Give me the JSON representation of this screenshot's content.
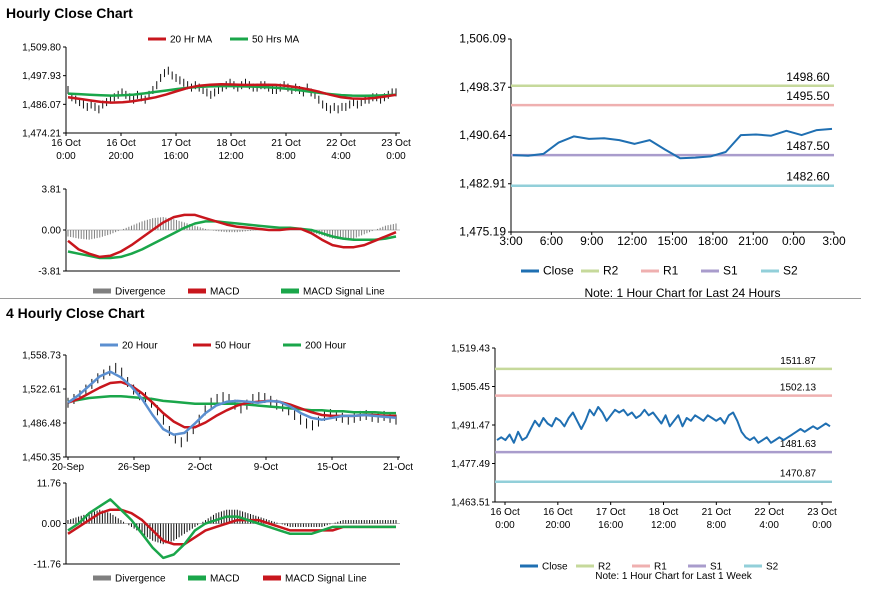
{
  "sections": [
    {
      "title": "Hourly Close Chart"
    },
    {
      "title": "4 Hourly Close Chart"
    }
  ],
  "colors": {
    "close": "#1f6fb2",
    "ma_red": "#c8161d",
    "ma_green": "#1aa64a",
    "ma_blue": "#5b8fd0",
    "r2": "#c6d99b",
    "r1": "#efb0b0",
    "s1": "#a99ccc",
    "s2": "#92cfd9",
    "grey": "#7f7f7f",
    "black": "#111111"
  },
  "chart_data": [
    {
      "id": "hourly_price",
      "type": "line",
      "title": "Hourly Close Chart",
      "y_ticks": [
        "1,509.80",
        "1,497.93",
        "1,486.07",
        "1,474.21"
      ],
      "ylim": [
        1474.21,
        1509.8
      ],
      "x_ticks": [
        [
          "16 Oct",
          "0:00"
        ],
        [
          "16 Oct",
          "20:00"
        ],
        [
          "17 Oct",
          "16:00"
        ],
        [
          "18 Oct",
          "12:00"
        ],
        [
          "21 Oct",
          "8:00"
        ],
        [
          "22 Oct",
          "4:00"
        ],
        [
          "23 Oct",
          "0:00"
        ]
      ],
      "legend": [
        "20 Hr MA",
        "50 Hrs MA"
      ],
      "series": [
        {
          "name": "Close",
          "values": [
            1492,
            1489,
            1488,
            1487,
            1486,
            1485,
            1486,
            1485,
            1484,
            1486,
            1487,
            1488,
            1489,
            1490,
            1491,
            1490,
            1489,
            1488,
            1490,
            1489,
            1488,
            1490,
            1492,
            1494,
            1497,
            1499,
            1500,
            1498,
            1497,
            1496,
            1495,
            1494,
            1493,
            1494,
            1493,
            1492,
            1491,
            1490,
            1491,
            1492,
            1493,
            1494,
            1495,
            1494,
            1493,
            1494,
            1495,
            1494,
            1493,
            1493,
            1494,
            1494,
            1493,
            1492,
            1492,
            1493,
            1494,
            1493,
            1492,
            1493,
            1492,
            1491,
            1493,
            1491,
            1490,
            1488,
            1486,
            1485,
            1484,
            1485,
            1484,
            1485,
            1485,
            1486,
            1487,
            1486,
            1487,
            1488,
            1488,
            1489,
            1489,
            1488,
            1489,
            1490,
            1491,
            1491
          ]
        },
        {
          "name": "20 Hr MA",
          "values": [
            1489,
            1488.4,
            1487.7,
            1487.1,
            1486.8,
            1486.9,
            1487.4,
            1488.1,
            1489,
            1490.2,
            1491.6,
            1492.9,
            1493.8,
            1494.2,
            1494.4,
            1494.3,
            1494.1,
            1494.1,
            1494.2,
            1494.1,
            1493.7,
            1493.1,
            1492.3,
            1491.2,
            1490,
            1489,
            1488.5,
            1488.4,
            1488.7,
            1489.3,
            1490
          ]
        },
        {
          "name": "50 Hrs MA",
          "values": [
            1490.5,
            1490.3,
            1490,
            1489.8,
            1489.7,
            1489.8,
            1490.1,
            1490.6,
            1491.2,
            1491.8,
            1492.4,
            1492.9,
            1493.3,
            1493.5,
            1493.6,
            1493.6,
            1493.5,
            1493.4,
            1493.2,
            1492.9,
            1492.5,
            1492,
            1491.4,
            1490.8,
            1490.3,
            1489.9,
            1489.7,
            1489.6,
            1489.7,
            1489.8,
            1490
          ]
        }
      ]
    },
    {
      "id": "hourly_macd",
      "type": "line",
      "y_ticks": [
        "3.81",
        "0.00",
        "-3.81"
      ],
      "ylim": [
        -3.81,
        3.81
      ],
      "legend": [
        "Divergence",
        "MACD",
        "MACD Signal Line"
      ],
      "series": [
        {
          "name": "Divergence",
          "values": [
            -0.6,
            -0.8,
            -0.9,
            -0.7,
            -0.4,
            0,
            0.4,
            0.8,
            1.1,
            1.2,
            1.0,
            0.7,
            0.4,
            0.1,
            -0.1,
            -0.2,
            -0.2,
            -0.1,
            0,
            0,
            0,
            0,
            0.1,
            -0.2,
            -0.5,
            -0.8,
            -0.9,
            -0.8,
            -0.4,
            0,
            0.4,
            0.6
          ]
        },
        {
          "name": "MACD",
          "values": [
            -1.0,
            -1.8,
            -2.2,
            -2.5,
            -2.4,
            -2.0,
            -1.4,
            -0.7,
            0,
            0.7,
            1.2,
            1.4,
            1.4,
            1.1,
            0.8,
            0.5,
            0.3,
            0.2,
            0.1,
            0,
            0,
            0.1,
            0.1,
            -0.3,
            -0.9,
            -1.4,
            -1.6,
            -1.6,
            -1.4,
            -1.0,
            -0.6,
            -0.2
          ]
        },
        {
          "name": "MACD Signal Line",
          "values": [
            -2.0,
            -2.2,
            -2.4,
            -2.6,
            -2.6,
            -2.5,
            -2.2,
            -1.8,
            -1.3,
            -0.8,
            -0.3,
            0.2,
            0.6,
            0.8,
            0.8,
            0.7,
            0.6,
            0.5,
            0.4,
            0.3,
            0.2,
            0.2,
            0.1,
            0,
            -0.3,
            -0.6,
            -0.8,
            -0.9,
            -0.9,
            -0.9,
            -0.8,
            -0.6
          ]
        }
      ]
    },
    {
      "id": "hourly_pivots",
      "type": "line",
      "y_ticks": [
        "1,506.09",
        "1,498.37",
        "1,490.64",
        "1,482.91",
        "1,475.19"
      ],
      "ylim": [
        1475.19,
        1506.09
      ],
      "x_ticks": [
        "3:00",
        "6:00",
        "9:00",
        "12:00",
        "15:00",
        "18:00",
        "21:00",
        "0:00",
        "3:00"
      ],
      "close": [
        1487.5,
        1487.4,
        1487.7,
        1489.5,
        1490.5,
        1490.1,
        1490.2,
        1489.9,
        1489.3,
        1489.9,
        1488.4,
        1487,
        1487.1,
        1487.3,
        1488,
        1490.7,
        1490.8,
        1490.6,
        1491.4,
        1490.7,
        1491.5,
        1491.7
      ],
      "levels": [
        {
          "name": "R2",
          "value": 1498.6,
          "label": "1498.60"
        },
        {
          "name": "R1",
          "value": 1495.5,
          "label": "1495.50"
        },
        {
          "name": "S1",
          "value": 1487.5,
          "label": "1487.50"
        },
        {
          "name": "S2",
          "value": 1482.6,
          "label": "1482.60"
        }
      ],
      "legend": [
        "Close",
        "R2",
        "R1",
        "S1",
        "S2"
      ],
      "note": "Note: 1 Hour Chart for Last 24 Hours"
    },
    {
      "id": "four_hourly_price",
      "type": "line",
      "title": "4 Hourly Close Chart",
      "y_ticks": [
        "1,558.73",
        "1,522.61",
        "1,486.48",
        "1,450.35"
      ],
      "ylim": [
        1450.35,
        1558.73
      ],
      "x_ticks": [
        "20-Sep",
        "26-Sep",
        "2-Oct",
        "9-Oct",
        "15-Oct",
        "21-Oct"
      ],
      "legend": [
        "20 Hour",
        "50 Hour",
        "200 Hour"
      ],
      "series": [
        {
          "name": "Close",
          "values": [
            1508,
            1512,
            1516,
            1522,
            1528,
            1534,
            1538,
            1542,
            1545,
            1540,
            1530,
            1522,
            1516,
            1514,
            1508,
            1500,
            1490,
            1478,
            1470,
            1466,
            1472,
            1480,
            1490,
            1500,
            1508,
            1512,
            1514,
            1512,
            1506,
            1502,
            1506,
            1512,
            1514,
            1513,
            1510,
            1506,
            1504,
            1500,
            1495,
            1490,
            1486,
            1484,
            1488,
            1494,
            1496,
            1494,
            1492,
            1490,
            1492,
            1494,
            1495,
            1493,
            1492,
            1494,
            1492,
            1490
          ]
        },
        {
          "name": "20 Hour",
          "values": [
            1508,
            1516,
            1526,
            1536,
            1541,
            1535,
            1525,
            1512,
            1495,
            1480,
            1474,
            1476,
            1486,
            1497,
            1505,
            1509,
            1510,
            1509,
            1508,
            1510,
            1509,
            1504,
            1497,
            1492,
            1490,
            1492,
            1494,
            1494,
            1495,
            1494,
            1493,
            1492
          ]
        },
        {
          "name": "50 Hour",
          "values": [
            1508,
            1512,
            1518,
            1524,
            1529,
            1530,
            1526,
            1518,
            1508,
            1497,
            1488,
            1482,
            1482,
            1487,
            1494,
            1500,
            1505,
            1508,
            1509,
            1510,
            1509,
            1506,
            1502,
            1498,
            1495,
            1494,
            1494,
            1494,
            1495,
            1495,
            1494,
            1494
          ]
        },
        {
          "name": "200 Hour",
          "values": [
            1509,
            1511,
            1513,
            1514,
            1515,
            1515,
            1514,
            1513,
            1512,
            1510,
            1509,
            1508,
            1507,
            1507,
            1507,
            1507,
            1507,
            1506,
            1505,
            1504,
            1503,
            1502,
            1501,
            1500,
            1500,
            1499,
            1499,
            1498,
            1498,
            1498,
            1497,
            1497
          ]
        }
      ]
    },
    {
      "id": "four_hourly_macd",
      "type": "line",
      "y_ticks": [
        "11.76",
        "0.00",
        "-11.76"
      ],
      "ylim": [
        -11.76,
        11.76
      ],
      "legend": [
        "Divergence",
        "MACD",
        "MACD Signal Line"
      ],
      "series": [
        {
          "name": "Divergence",
          "values": [
            1,
            2,
            3,
            4,
            3,
            1,
            -1,
            -3,
            -5,
            -6,
            -5,
            -3,
            -1,
            1,
            3,
            4,
            4,
            3,
            2,
            1,
            0,
            -1,
            -1,
            -1,
            -1,
            0,
            1,
            1,
            1,
            1,
            1,
            1
          ]
        },
        {
          "name": "MACD",
          "values": [
            -2,
            0,
            3,
            5,
            7,
            4,
            1,
            -3,
            -7,
            -10,
            -9,
            -6,
            -2,
            0,
            1,
            2,
            2,
            1,
            0,
            -1,
            -2,
            -3,
            -3,
            -3,
            -2,
            -1,
            -1,
            -1,
            -1,
            -1,
            -1,
            -1
          ]
        },
        {
          "name": "MACD Signal Line",
          "values": [
            -3,
            -1,
            1,
            3,
            4,
            4,
            3,
            1,
            -2,
            -5,
            -6,
            -6,
            -4,
            -2,
            -1,
            0,
            1,
            1,
            1,
            0,
            -1,
            -2,
            -2,
            -2,
            -2,
            -2,
            -1,
            -1,
            -1,
            -1,
            -1,
            -1
          ]
        }
      ]
    },
    {
      "id": "four_hourly_pivots",
      "type": "line",
      "y_ticks": [
        "1,519.43",
        "1,505.45",
        "1,491.47",
        "1,477.49",
        "1,463.51"
      ],
      "ylim": [
        1463.51,
        1519.43
      ],
      "x_ticks": [
        [
          "16 Oct",
          "0:00"
        ],
        [
          "16 Oct",
          "20:00"
        ],
        [
          "17 Oct",
          "16:00"
        ],
        [
          "18 Oct",
          "12:00"
        ],
        [
          "21 Oct",
          "8:00"
        ],
        [
          "22 Oct",
          "4:00"
        ],
        [
          "23 Oct",
          "0:00"
        ]
      ],
      "close": [
        1486,
        1487,
        1486,
        1488,
        1485,
        1489,
        1486,
        1487,
        1490,
        1493,
        1491,
        1494,
        1492,
        1491,
        1494,
        1493,
        1491,
        1494,
        1496,
        1493,
        1490,
        1493,
        1497,
        1495,
        1498,
        1496,
        1493,
        1495,
        1497,
        1496,
        1497,
        1495,
        1496,
        1494,
        1495,
        1497,
        1495,
        1496,
        1494,
        1492,
        1495,
        1491,
        1493,
        1495,
        1491,
        1494,
        1493,
        1495,
        1494,
        1493,
        1495,
        1494,
        1493,
        1494,
        1492,
        1495,
        1496,
        1493,
        1489,
        1487,
        1486,
        1487,
        1485,
        1486,
        1487,
        1485,
        1486,
        1487,
        1486,
        1487,
        1488,
        1489,
        1490,
        1489,
        1490,
        1491,
        1490,
        1491,
        1492,
        1491
      ],
      "levels": [
        {
          "name": "R2",
          "value": 1511.87,
          "label": "1511.87"
        },
        {
          "name": "R1",
          "value": 1502.13,
          "label": "1502.13"
        },
        {
          "name": "S1",
          "value": 1481.63,
          "label": "1481.63"
        },
        {
          "name": "S2",
          "value": 1470.87,
          "label": "1470.87"
        }
      ],
      "legend": [
        "Close",
        "R2",
        "R1",
        "S1",
        "S2"
      ],
      "note": "Note: 1 Hour Chart for Last 1 Week"
    }
  ]
}
